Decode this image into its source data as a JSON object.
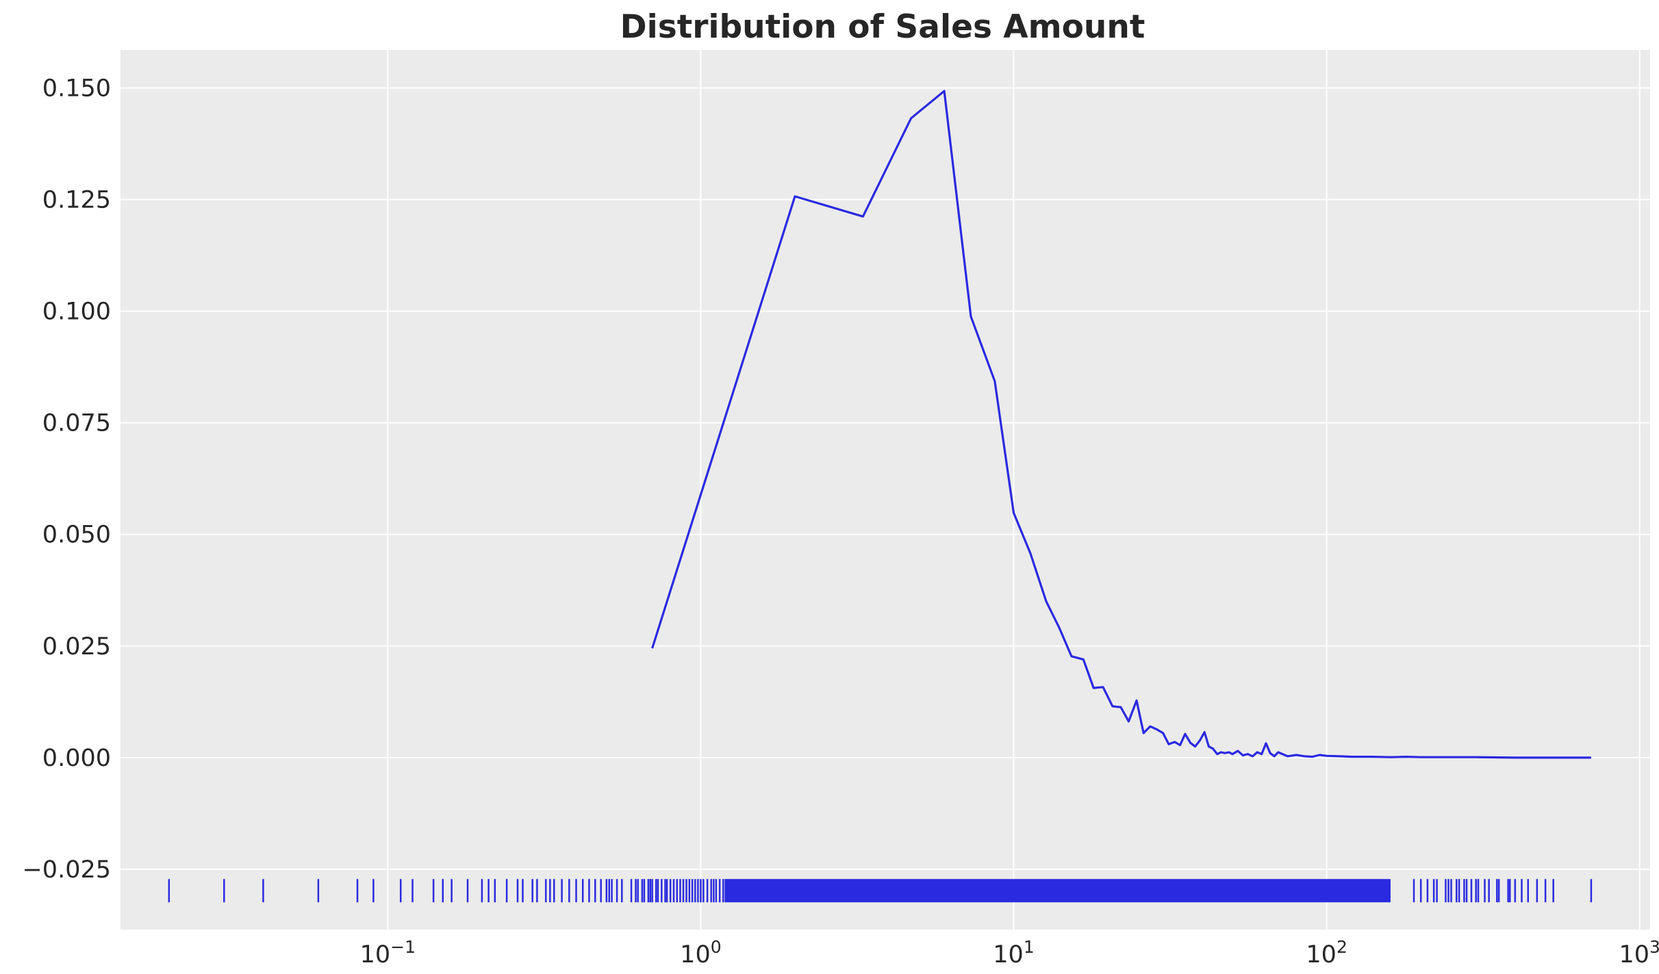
{
  "chart_data": {
    "type": "line",
    "title": "Distribution of Sales Amount",
    "xlabel": "",
    "ylabel": "",
    "x_scale": "log",
    "xlim": [
      0.014,
      1080
    ],
    "ylim": [
      -0.0385,
      0.1585
    ],
    "grid": true,
    "legend": "none",
    "x_ticks": [
      {
        "value": 0.1,
        "base": "10",
        "exp": "−1"
      },
      {
        "value": 1,
        "base": "10",
        "exp": "0"
      },
      {
        "value": 10,
        "base": "10",
        "exp": "1"
      },
      {
        "value": 100,
        "base": "10",
        "exp": "2"
      },
      {
        "value": 1000,
        "base": "10",
        "exp": "3"
      }
    ],
    "y_ticks": [
      {
        "value": -0.025,
        "label": "−0.025"
      },
      {
        "value": 0.0,
        "label": "0.000"
      },
      {
        "value": 0.025,
        "label": "0.025"
      },
      {
        "value": 0.05,
        "label": "0.050"
      },
      {
        "value": 0.075,
        "label": "0.075"
      },
      {
        "value": 0.1,
        "label": "0.100"
      },
      {
        "value": 0.125,
        "label": "0.125"
      },
      {
        "value": 0.15,
        "label": "0.150"
      }
    ],
    "colors": {
      "line": "#2a2ae0",
      "rug": "#2a2ae0",
      "plot_background": "#ebebeb",
      "grid": "#ffffff",
      "text": "#262626"
    },
    "series": [
      {
        "x": [
          0.7,
          2.0,
          3.3,
          4.7,
          6.0,
          7.3,
          8.7,
          10.0,
          11.3,
          12.7,
          14.0,
          15.3,
          16.7,
          18.0,
          19.3,
          20.7,
          22.0,
          23.3,
          24.7,
          26.0,
          27.3,
          28.7,
          30.0,
          31.3,
          32.7,
          34.0,
          35.3,
          36.7,
          38.0,
          39.3,
          40.7,
          42.0,
          43.3,
          44.7,
          46.0,
          47.3,
          48.7,
          50.0,
          52.0,
          54.0,
          56.0,
          58.0,
          60.0,
          62.0,
          64.0,
          66.0,
          68.0,
          70.0,
          75.0,
          80.0,
          85.0,
          90.0,
          95.0,
          100.0,
          110.0,
          120.0,
          140.0,
          160.0,
          180.0,
          200.0,
          250.0,
          300.0,
          400.0,
          500.0,
          700.0
        ],
        "y": [
          0.0245,
          0.1257,
          0.1212,
          0.1432,
          0.1493,
          0.0988,
          0.0843,
          0.0548,
          0.0458,
          0.035,
          0.029,
          0.0227,
          0.022,
          0.0156,
          0.0158,
          0.0115,
          0.0113,
          0.0081,
          0.0128,
          0.0055,
          0.007,
          0.0063,
          0.0055,
          0.003,
          0.0035,
          0.0028,
          0.0053,
          0.0033,
          0.0025,
          0.0038,
          0.0057,
          0.0025,
          0.002,
          0.0008,
          0.0012,
          0.001,
          0.0012,
          0.0008,
          0.0015,
          0.0005,
          0.0008,
          0.0003,
          0.0012,
          0.0008,
          0.0032,
          0.001,
          0.0003,
          0.0012,
          0.0003,
          0.0006,
          0.0003,
          0.0002,
          0.0006,
          0.0004,
          0.0003,
          0.0002,
          0.0002,
          0.0001,
          0.0002,
          0.0001,
          0.0001,
          0.0001,
          0.0,
          0.0,
          0.0
        ]
      }
    ],
    "rug": {
      "y": -0.0298,
      "values": [
        0.02,
        0.03,
        0.04,
        0.06,
        0.08,
        0.09,
        0.11,
        0.12,
        0.14,
        0.15,
        0.16,
        0.18,
        0.2,
        0.21,
        0.22,
        0.24,
        0.26,
        0.27,
        0.29,
        0.3,
        0.32,
        0.33,
        0.34,
        0.36,
        0.38,
        0.4,
        0.42,
        0.44,
        0.46,
        0.48,
        0.5,
        0.51,
        0.52,
        0.54,
        0.56,
        0.6,
        0.62,
        0.63,
        0.65,
        0.66,
        0.68,
        0.69,
        0.7,
        0.72,
        0.73,
        0.75,
        0.77,
        0.78,
        0.8,
        0.82,
        0.84,
        0.86,
        0.88,
        0.9,
        0.92,
        0.94,
        0.96,
        0.98,
        1.0,
        1.02,
        1.05,
        1.08,
        1.1,
        1.12,
        1.15,
        1.18,
        1.2,
        190,
        200,
        210,
        220,
        225,
        240,
        245,
        250,
        260,
        265,
        275,
        280,
        290,
        300,
        305,
        320,
        330,
        350,
        355,
        380,
        385,
        400,
        420,
        440,
        470,
        500,
        530,
        700
      ],
      "dense_band": [
        1.2,
        160
      ]
    }
  }
}
